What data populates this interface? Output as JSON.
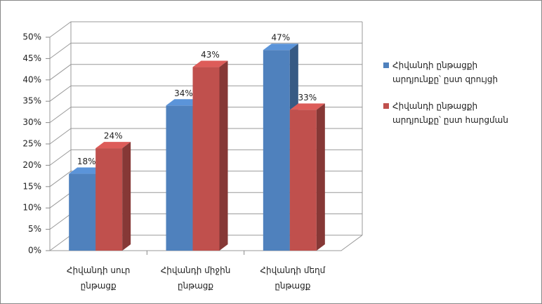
{
  "chart_data": {
    "type": "bar3d",
    "categories": [
      "Հիվանդի սուր ընթացք",
      "Հիվանդի միջին ընթացք",
      "Հիվանդի մեղմ ընթացք"
    ],
    "series": [
      {
        "name": "Հիվանդի ընթացքի արդյունքը՝ ըստ զրույցի",
        "color": "#4f81bd",
        "values": [
          18,
          34,
          47
        ],
        "value_labels": [
          "18%",
          "34%",
          "47%"
        ]
      },
      {
        "name": "Հիվանդի ընթացքի արդյունքը՝ ըստ հարցման",
        "color": "#c0504d",
        "values": [
          24,
          43,
          33
        ],
        "value_labels": [
          "24%",
          "43%",
          "33%"
        ]
      }
    ],
    "ylim": [
      0,
      50
    ],
    "yticks": [
      {
        "value": 0,
        "label": "0%"
      },
      {
        "value": 5,
        "label": "5%"
      },
      {
        "value": 10,
        "label": "10%"
      },
      {
        "value": 15,
        "label": "15%"
      },
      {
        "value": 20,
        "label": "20%"
      },
      {
        "value": 25,
        "label": "25%"
      },
      {
        "value": 30,
        "label": "30%"
      },
      {
        "value": 35,
        "label": "35%"
      },
      {
        "value": 40,
        "label": "40%"
      },
      {
        "value": 45,
        "label": "45%"
      },
      {
        "value": 50,
        "label": "50%"
      }
    ],
    "grid": true,
    "legend": "right"
  }
}
